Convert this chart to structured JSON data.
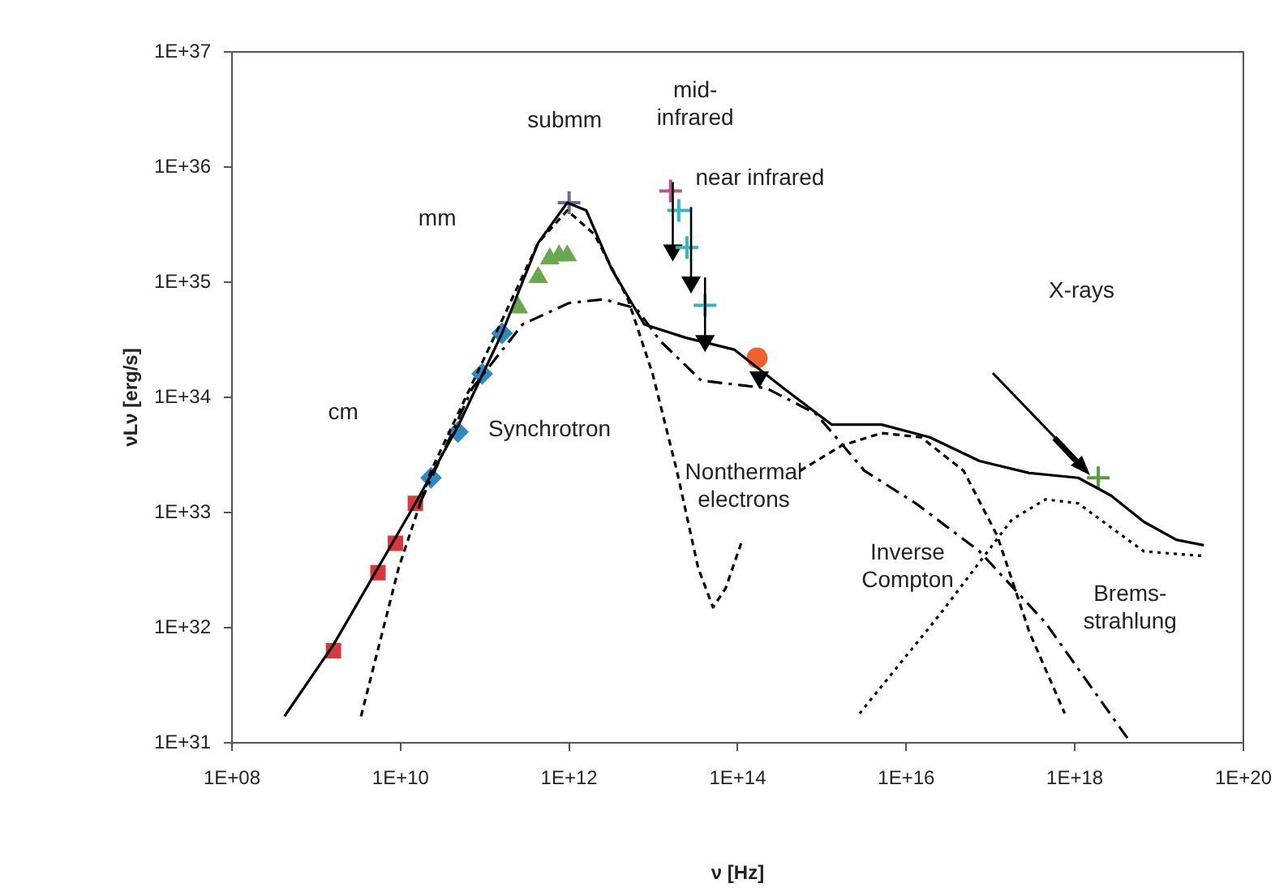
{
  "chart_data": {
    "type": "line",
    "xlabel": "ν [Hz]",
    "ylabel": "νLν [erg/s]",
    "log": "xy",
    "grid": false,
    "legend": false,
    "xlim": [
      100000000.0,
      1e+20
    ],
    "ylim": [
      1e+31,
      1e+37
    ],
    "xticks": [
      {
        "value": 100000000.0,
        "label": "1E+08"
      },
      {
        "value": 10000000000.0,
        "label": "1E+10"
      },
      {
        "value": 1000000000000.0,
        "label": "1E+12"
      },
      {
        "value": 100000000000000.0,
        "label": "1E+14"
      },
      {
        "value": 1e+16,
        "label": "1E+16"
      },
      {
        "value": 1e+18,
        "label": "1E+18"
      },
      {
        "value": 1e+20,
        "label": "1E+20"
      }
    ],
    "yticks": [
      {
        "value": 1e+31,
        "label": "1E+31"
      },
      {
        "value": 1e+32,
        "label": "1E+32"
      },
      {
        "value": 1e+33,
        "label": "1E+33"
      },
      {
        "value": 1e+34,
        "label": "1E+34"
      },
      {
        "value": 1e+35,
        "label": "1E+35"
      },
      {
        "value": 1e+36,
        "label": "1E+36"
      },
      {
        "value": 1e+37,
        "label": "1E+37"
      }
    ],
    "series": [
      {
        "type": "line",
        "color": "#000000",
        "marker": "none",
        "line_style": "solid",
        "x": [
          420000000.0,
          1600000000.0,
          15000000000.0,
          48000000000.0,
          160000000000.0,
          430000000000.0,
          950000000000.0,
          1600000000000.0,
          3200000000000.0,
          7800000000000.0,
          24000000000000.0,
          91000000000000.0,
          350000000000000.0,
          1300000000000000.0,
          5100000000000000.0,
          1.9e+16,
          7.4e+16,
          2.9e+17,
          1.1e+18,
          2.7e+18,
          6.6e+18,
          1.6e+19,
          3.4e+19
        ],
        "values": [
          1.7e+31,
          7.1e+31,
          1.2e+33,
          5.6e+33,
          3.6e+34,
          2.2e+35,
          4.9e+35,
          4.2e+35,
          1.3e+35,
          4.3e+34,
          3.3e+34,
          2.6e+34,
          1.2e+34,
          5.8e+33,
          5.8e+33,
          4.5e+33,
          2.8e+33,
          2.2e+33,
          2e+33,
          1.4e+33,
          8.3e+32,
          5.8e+32,
          5.2e+32
        ]
      },
      {
        "type": "line",
        "color": "#000000",
        "marker": "none",
        "line_style": "dashed",
        "x": [
          3400000000.0,
          9500000000.0,
          23000000000.0,
          110000000000.0,
          430000000000.0,
          950000000000.0,
          2000000000000.0,
          5000000000000.0,
          9800000000000.0,
          19000000000000.0,
          34000000000000.0,
          51000000000000.0,
          72000000000000.0,
          110000000000000.0
        ],
        "values": [
          1.7e+31,
          3.3e+32,
          2.3e+33,
          2.6e+34,
          2.2e+35,
          4.2e+35,
          2.6e+35,
          7.1e+34,
          1.6e+34,
          2.3e+33,
          3.3e+32,
          1.5e+32,
          2.2e+32,
          5.4e+32
        ]
      },
      {
        "type": "line",
        "color": "#000000",
        "marker": "none",
        "line_style": "dashed",
        "x": [
          550000000000000.0,
          1700000000000000.0,
          5100000000000000.0,
          1.5e+16,
          4.8e+16,
          1.2e+17,
          2.9e+17,
          7.6e+17
        ],
        "values": [
          2.3e+33,
          3.8e+33,
          4.9e+33,
          4.5e+33,
          2.3e+33,
          6.3e+32,
          9.1e+31,
          1.8e+31
        ]
      },
      {
        "type": "line",
        "color": "#000000",
        "marker": "none",
        "line_style": "dashdot",
        "x": [
          17000000000.0,
          71000000000.0,
          280000000000.0,
          1000000000000.0,
          2600000000000.0,
          6300000000000.0,
          12000000000000.0,
          37000000000000.0,
          220000000000000.0,
          850000000000000.0,
          3200000000000000.0,
          1.3e+16,
          7.4e+16,
          4.5e+17,
          4.2e+18
        ],
        "values": [
          1.2e+33,
          1.2e+34,
          4.3e+34,
          6.6e+34,
          7.1e+34,
          5.9e+34,
          3.1e+34,
          1.4e+34,
          1.2e+34,
          7.2e+33,
          2.3e+33,
          1.2e+33,
          4.6e+32,
          1.1e+32,
          1.1e+31
        ]
      },
      {
        "type": "line",
        "color": "#000000",
        "marker": "none",
        "line_style": "dotted",
        "x": [
          2800000000000000.0,
          2.5e+16,
          1.8e+17,
          4.5e+17,
          1.1e+18,
          2.7e+18,
          6.6e+18,
          3.2e+19
        ],
        "values": [
          1.8e+31,
          1.3e+32,
          8.7e+32,
          1.3e+33,
          1.2e+33,
          7.4e+32,
          4.6e+32,
          4.2e+32
        ]
      },
      {
        "type": "scatter",
        "color": "#d9383a",
        "marker": "square",
        "x": [
          1600000000.0,
          5400000000.0,
          8700000000.0,
          15000000000.0
        ],
        "values": [
          6.3e+31,
          3e+32,
          5.4e+32,
          1.2e+33
        ]
      },
      {
        "type": "scatter",
        "color": "#2e8bc0",
        "marker": "diamond",
        "x": [
          23000000000.0,
          48000000000.0,
          93000000000.0,
          160000000000.0
        ],
        "values": [
          2e+33,
          5e+33,
          1.6e+34,
          3.6e+34
        ]
      },
      {
        "type": "scatter",
        "color": "#6aa84f",
        "marker": "triangle",
        "x": [
          250000000000.0,
          430000000000.0,
          590000000000.0,
          760000000000.0,
          950000000000.0
        ],
        "values": [
          6e+34,
          1.1e+35,
          1.6e+35,
          1.7e+35,
          1.7e+35
        ]
      },
      {
        "type": "scatter",
        "color": "#6a6a9a",
        "marker": "cross",
        "x": [
          1000000000000.0
        ],
        "values": [
          4.9e+35
        ]
      },
      {
        "type": "scatter",
        "color": "#c0508a",
        "marker": "cross",
        "x": [
          16000000000000.0
        ],
        "values": [
          6.2e+35
        ]
      },
      {
        "type": "scatter",
        "color": "#36b5c0",
        "marker": "cross",
        "x": [
          20000000000000.0,
          25000000000000.0
        ],
        "values": [
          4.2e+35,
          2e+35
        ]
      },
      {
        "type": "scatter",
        "color": "#36b5c0",
        "marker": "cross",
        "x": [
          41000000000000.0
        ],
        "values": [
          6.3e+34
        ]
      },
      {
        "type": "scatter",
        "color": "#000000",
        "marker": "triangle",
        "x": [
          17000000000000.0,
          28000000000000.0,
          41000000000000.0,
          180000000000000.0
        ],
        "values": [
          1.9e+35,
          1e+35,
          3.1e+34,
          1.5e+34
        ],
        "errors": [
          [
            1.9e+35,
            7.4e+35
          ],
          [
            1e+35,
            4.5e+35
          ],
          [
            3.1e+34,
            1.1e+35
          ],
          null
        ]
      },
      {
        "type": "scatter",
        "color": "#f06030",
        "marker": "circle",
        "x": [
          170000000000000.0
        ],
        "values": [
          2.2e+34
        ]
      },
      {
        "type": "scatter",
        "color": "#5a9a3a",
        "marker": "cross",
        "x": [
          1.9e+18
        ],
        "values": [
          2e+33
        ]
      }
    ],
    "annotations": [
      "cm",
      "mm",
      "submm",
      "mid-\ninfrared",
      "near infrared",
      "X-rays",
      "Synchrotron",
      "Nonthermal\nelectrons",
      "Inverse\nCompton",
      "Brems-\nstrahlung"
    ]
  }
}
